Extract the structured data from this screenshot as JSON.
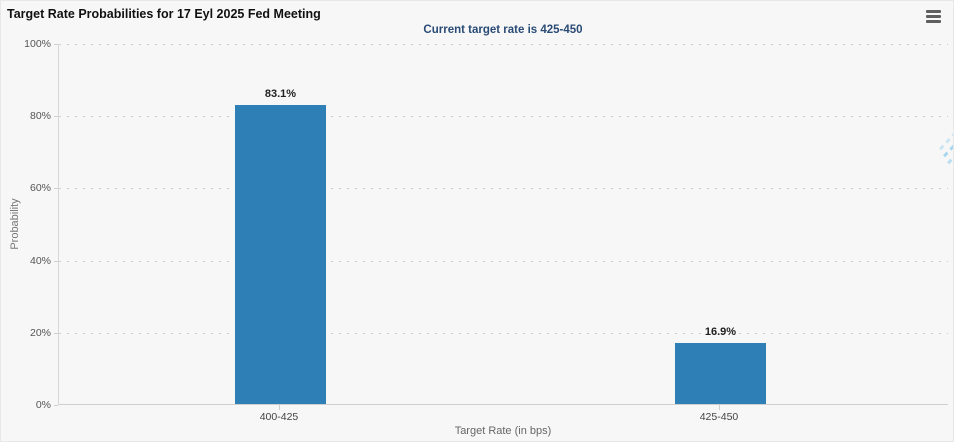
{
  "header": {
    "title": "Target Rate Probabilities for 17 Eyl 2025 Fed Meeting",
    "menu_icon": "hamburger-icon"
  },
  "subtitle": "Current target rate is 425-450",
  "watermark_letter": "Q",
  "colors": {
    "bar_fill": "#2d7fb5",
    "subtitle_text": "#2a4b76",
    "background": "#f7f7f7",
    "gridline": "#c9cdd1"
  },
  "chart_data": {
    "type": "bar",
    "title": "Target Rate Probabilities for 17 Eyl 2025 Fed Meeting",
    "subtitle": "Current target rate is 425-450",
    "categories": [
      "400-425",
      "425-450"
    ],
    "values": [
      83.1,
      16.9
    ],
    "value_labels": [
      "83.1%",
      "16.9%"
    ],
    "xlabel": "Target Rate (in bps)",
    "ylabel": "Probability",
    "ylim": [
      0,
      100
    ],
    "yticks": [
      "100%",
      "80%",
      "60%",
      "40%",
      "20%",
      "0%"
    ],
    "grid": "horizontal dotted",
    "legend": "none"
  }
}
